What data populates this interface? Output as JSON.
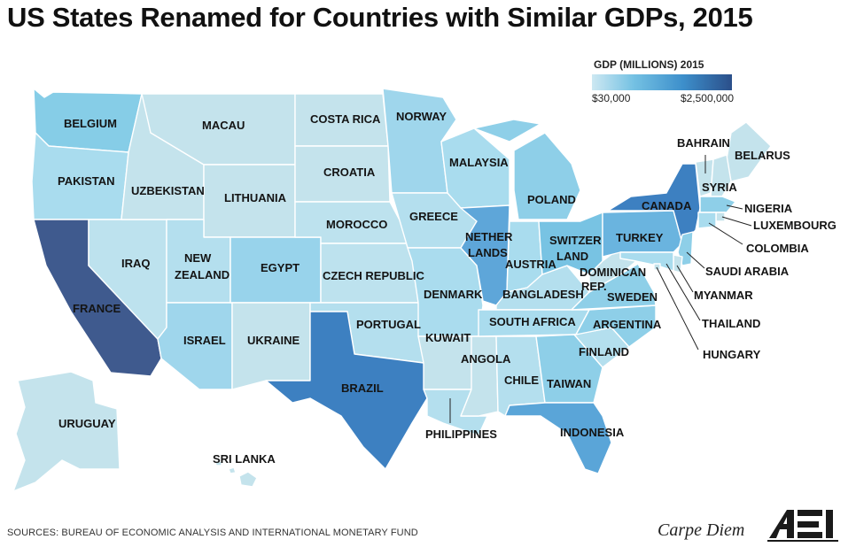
{
  "title": "US States Renamed for Countries with Similar GDPs, 2015",
  "legend": {
    "title": "GDP (MILLIONS) 2015",
    "min_label": "$30,000",
    "max_label": "$2,500,000",
    "colors": [
      "#cde8f2",
      "#74c1e3",
      "#3d8fcb",
      "#2b4f8a"
    ]
  },
  "states": {
    "wa": {
      "label": "BELGIUM",
      "color": "#86cde7"
    },
    "or": {
      "label": "PAKISTAN",
      "color": "#a9dcee"
    },
    "ca": {
      "label": "FRANCE",
      "color": "#3f5a8e"
    },
    "nv": {
      "label": "IRAQ",
      "color": "#bde2ee"
    },
    "id": {
      "label": "UZBEKISTAN",
      "color": "#c4e3ec"
    },
    "mt": {
      "label": "MACAU",
      "color": "#c4e3ec"
    },
    "wy": {
      "label": "LITHUANIA",
      "color": "#c4e3ec"
    },
    "ut": {
      "label": "NEW ZEALAND",
      "color": "#b4dfee"
    },
    "az": {
      "label": "ISRAEL",
      "color": "#9fd6ec"
    },
    "co": {
      "label": "EGYPT",
      "color": "#98d3eb"
    },
    "nm": {
      "label": "UKRAINE",
      "color": "#c4e3ec"
    },
    "nd": {
      "label": "COSTA RICA",
      "color": "#c4e3ec"
    },
    "sd": {
      "label": "CROATIA",
      "color": "#c4e3ec"
    },
    "ne": {
      "label": "MOROCCO",
      "color": "#bde2ee"
    },
    "ks": {
      "label": "CZECH REPUBLIC",
      "color": "#bde2ee"
    },
    "ok": {
      "label": "PORTUGAL",
      "color": "#b4dfee"
    },
    "tx": {
      "label": "BRAZIL",
      "color": "#3d80c1"
    },
    "mn": {
      "label": "NORWAY",
      "color": "#9fd6ec"
    },
    "ia": {
      "label": "GREECE",
      "color": "#b4dfee"
    },
    "mo": {
      "label": "DENMARK",
      "color": "#aadcee"
    },
    "ar": {
      "label": "KUWAIT",
      "color": "#c4e3ec"
    },
    "la": {
      "label": "ANGOLA",
      "color": "#b4dfee"
    },
    "wi": {
      "label": "MALAYSIA",
      "color": "#a9dcee"
    },
    "il": {
      "label": "NETHER LANDS",
      "color": "#5ea6d9"
    },
    "ms": {
      "label": "PHILIPPINES",
      "color": "#c4e3ec"
    },
    "mi": {
      "label": "POLAND",
      "color": "#8ecfe8"
    },
    "in": {
      "label": "AUSTRIA",
      "color": "#a9dcee"
    },
    "ky": {
      "label": "BANGLADESH",
      "color": "#b4dfee"
    },
    "tn": {
      "label": "SOUTH AFRICA",
      "color": "#aadcee"
    },
    "al": {
      "label": "CHILE",
      "color": "#b4dfee"
    },
    "oh": {
      "label": "SWITZER LAND",
      "color": "#78c3e3"
    },
    "ga": {
      "label": "TAIWAN",
      "color": "#8ecfe8"
    },
    "fl": {
      "label": "INDONESIA",
      "color": "#5aa5d8"
    },
    "sc": {
      "label": "FINLAND",
      "color": "#b4dfee"
    },
    "nc": {
      "label": "ARGENTINA",
      "color": "#8ecfe8"
    },
    "va": {
      "label": "SWEDEN",
      "color": "#8ecfe8"
    },
    "wv": {
      "label": "DOMINICAN REP.",
      "color": "#c4e3ec"
    },
    "pa": {
      "label": "TURKEY",
      "color": "#6ab4df"
    },
    "ny": {
      "label": "CANADA",
      "color": "#3d80c1"
    },
    "me": {
      "label": "BELARUS",
      "color": "#c4e3ec"
    },
    "vt": {
      "label": "BAHRAIN",
      "color": "#c4e3ec"
    },
    "nh": {
      "label": "SYRIA",
      "color": "#c4e3ec"
    },
    "ma": {
      "label": "NIGERIA",
      "color": "#8ecfe8"
    },
    "ri": {
      "label": "LUXEMBOURG",
      "color": "#c4e3ec"
    },
    "ct": {
      "label": "COLOMBIA",
      "color": "#a9dcee"
    },
    "nj": {
      "label": "SAUDI ARABIA",
      "color": "#8ecfe8"
    },
    "de": {
      "label": "MYANMAR",
      "color": "#c4e3ec"
    },
    "md": {
      "label": "THAILAND",
      "color": "#a9dcee"
    },
    "dc": {
      "label": "HUNGARY",
      "color": "#c4e3ec"
    },
    "ak": {
      "label": "URUGUAY",
      "color": "#c4e3ec"
    },
    "hi": {
      "label": "SRI LANKA",
      "color": "#c4e3ec"
    }
  },
  "source": "SOURCES: BUREAU OF ECONOMIC ANALYSIS AND INTERNATIONAL MONETARY FUND",
  "branding": {
    "blog": "Carpe Diem",
    "logo": "AEI"
  }
}
